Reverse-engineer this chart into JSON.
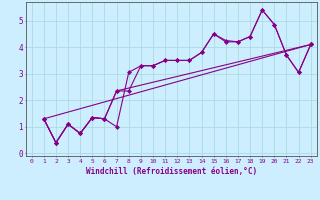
{
  "xlabel": "Windchill (Refroidissement éolien,°C)",
  "bg_color": "#cceeff",
  "grid_color": "#aadddd",
  "line_color": "#880088",
  "marker": "D",
  "markersize": 2.0,
  "linewidth": 0.8,
  "xlim": [
    -0.5,
    23.5
  ],
  "ylim": [
    -0.1,
    5.7
  ],
  "xticks": [
    0,
    1,
    2,
    3,
    4,
    5,
    6,
    7,
    8,
    9,
    10,
    11,
    12,
    13,
    14,
    15,
    16,
    17,
    18,
    19,
    20,
    21,
    22,
    23
  ],
  "yticks": [
    0,
    1,
    2,
    3,
    4,
    5
  ],
  "series": [
    {
      "x": [
        1,
        2,
        3,
        4,
        5,
        6,
        7,
        8,
        9,
        10,
        11,
        12,
        13,
        14,
        15,
        16,
        17,
        18,
        19,
        20,
        21,
        22,
        23
      ],
      "y": [
        1.3,
        0.4,
        1.1,
        0.75,
        1.35,
        1.3,
        1.0,
        3.05,
        3.3,
        3.3,
        3.5,
        3.5,
        3.5,
        3.8,
        4.5,
        4.2,
        4.2,
        4.4,
        5.4,
        4.85,
        3.7,
        3.05,
        4.1
      ]
    },
    {
      "x": [
        1,
        2,
        3,
        4,
        5,
        6,
        7,
        8,
        9,
        10,
        11,
        12,
        13,
        14,
        15,
        16,
        17,
        18,
        19,
        20,
        21,
        22,
        23
      ],
      "y": [
        1.3,
        0.4,
        1.1,
        0.75,
        1.35,
        1.3,
        2.35,
        2.35,
        3.3,
        3.3,
        3.5,
        3.5,
        3.5,
        3.8,
        4.5,
        4.25,
        4.2,
        4.4,
        5.4,
        4.85,
        3.7,
        3.05,
        4.1
      ]
    },
    {
      "x": [
        1,
        2,
        3,
        4,
        5,
        6,
        7,
        23
      ],
      "y": [
        1.3,
        0.4,
        1.1,
        0.75,
        1.35,
        1.3,
        2.35,
        4.1
      ]
    },
    {
      "x": [
        1,
        23
      ],
      "y": [
        1.3,
        4.1
      ]
    }
  ]
}
